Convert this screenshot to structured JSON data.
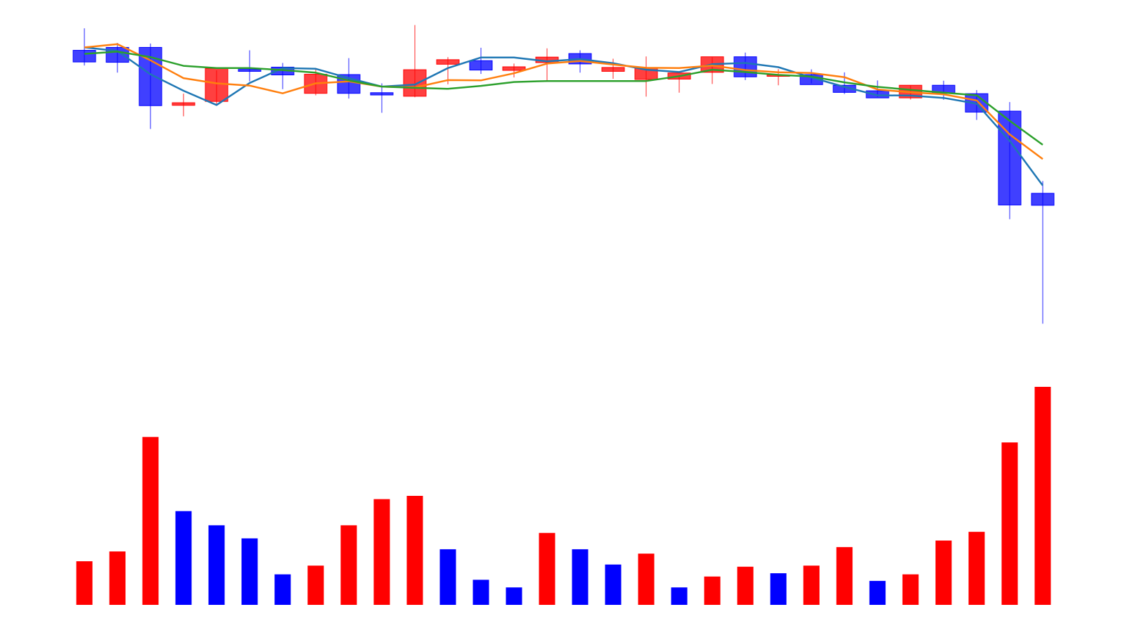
{
  "chart_data": [
    {
      "type": "candlestick",
      "title": "",
      "xlabel": "",
      "ylabel": "",
      "ylim": [
        0,
        100
      ],
      "grid": false,
      "legend": "none",
      "candles": [
        {
          "o": 90.1,
          "h": 96.9,
          "l": 85.4,
          "c": 86.5
        },
        {
          "o": 91.0,
          "h": 92.4,
          "l": 83.2,
          "c": 86.4
        },
        {
          "o": 91.0,
          "h": 92.2,
          "l": 65.8,
          "c": 73.0
        },
        {
          "o": 73.1,
          "h": 76.7,
          "l": 69.7,
          "c": 73.9
        },
        {
          "o": 74.3,
          "h": 83.9,
          "l": 73.5,
          "c": 84.5
        },
        {
          "o": 84.2,
          "h": 90.1,
          "l": 80.5,
          "c": 83.6
        },
        {
          "o": 84.9,
          "h": 86.2,
          "l": 78.1,
          "c": 82.5
        },
        {
          "o": 76.8,
          "h": 84.6,
          "l": 76.2,
          "c": 82.7
        },
        {
          "o": 82.6,
          "h": 87.7,
          "l": 75.2,
          "c": 76.8
        },
        {
          "o": 77.0,
          "h": 79.9,
          "l": 70.8,
          "c": 76.3
        },
        {
          "o": 75.9,
          "h": 97.9,
          "l": 75.6,
          "c": 84.1
        },
        {
          "o": 85.8,
          "h": 88.0,
          "l": 79.6,
          "c": 87.2
        },
        {
          "o": 86.9,
          "h": 90.9,
          "l": 82.8,
          "c": 84.0
        },
        {
          "o": 83.9,
          "h": 86.0,
          "l": 81.7,
          "c": 85.0
        },
        {
          "o": 86.3,
          "h": 90.7,
          "l": 80.6,
          "c": 88.0
        },
        {
          "o": 89.1,
          "h": 90.1,
          "l": 83.2,
          "c": 85.9
        },
        {
          "o": 83.6,
          "h": 87.5,
          "l": 81.3,
          "c": 84.8
        },
        {
          "o": 81.1,
          "h": 88.2,
          "l": 75.8,
          "c": 84.6
        },
        {
          "o": 81.2,
          "h": 82.5,
          "l": 77.0,
          "c": 83.1
        },
        {
          "o": 83.3,
          "h": 88.0,
          "l": 79.7,
          "c": 88.1
        },
        {
          "o": 88.1,
          "h": 89.4,
          "l": 80.9,
          "c": 81.9
        },
        {
          "o": 82.2,
          "h": 84.3,
          "l": 79.3,
          "c": 82.5
        },
        {
          "o": 82.6,
          "h": 84.2,
          "l": 79.9,
          "c": 79.5
        },
        {
          "o": 79.3,
          "h": 83.3,
          "l": 76.6,
          "c": 77.1
        },
        {
          "o": 77.6,
          "h": 80.8,
          "l": 75.7,
          "c": 75.4
        },
        {
          "o": 75.4,
          "h": 79.3,
          "l": 74.9,
          "c": 79.3
        },
        {
          "o": 79.3,
          "h": 80.7,
          "l": 74.8,
          "c": 76.8
        },
        {
          "o": 76.7,
          "h": 77.8,
          "l": 68.6,
          "c": 71.0
        },
        {
          "o": 71.3,
          "h": 74.1,
          "l": 37.9,
          "c": 42.3
        },
        {
          "o": 45.9,
          "h": 49.7,
          "l": 5.6,
          "c": 42.2
        }
      ],
      "moving_averages": [
        {
          "color": "#1f77b4",
          "values": [
            91.0,
            89.9,
            82.7,
            77.6,
            73.2,
            80.0,
            84.6,
            84.4,
            81.5,
            78.9,
            79.5,
            84.6,
            87.9,
            87.9,
            86.7,
            87.4,
            86.1,
            84.1,
            83.4,
            85.8,
            86.2,
            84.9,
            81.7,
            78.8,
            76.2,
            76.1,
            75.4,
            73.6,
            62.1,
            48.3
          ]
        },
        {
          "color": "#ff7f0e",
          "values": [
            91.0,
            92.0,
            87.0,
            81.5,
            79.9,
            79.2,
            76.8,
            79.9,
            80.5,
            78.9,
            78.6,
            80.9,
            80.8,
            83.0,
            86.0,
            86.8,
            85.7,
            84.7,
            84.6,
            85.4,
            84.0,
            83.3,
            83.1,
            81.8,
            78.0,
            77.1,
            76.5,
            74.6,
            64.1,
            56.5
          ]
        },
        {
          "color": "#2ca02c",
          "values": [
            89.0,
            89.7,
            88.0,
            85.3,
            84.6,
            84.6,
            84.0,
            83.2,
            80.8,
            78.9,
            78.5,
            78.2,
            79.1,
            80.3,
            80.6,
            80.6,
            80.6,
            80.6,
            82.1,
            84.1,
            83.4,
            82.5,
            82.0,
            80.2,
            78.8,
            77.9,
            77.0,
            76.2,
            68.3,
            60.9
          ]
        }
      ],
      "colors": {
        "up": "#ff0000",
        "down": "#0000ff",
        "up_body_opacity": 0.75,
        "down_body_opacity": 0.75
      }
    },
    {
      "type": "bar",
      "title": "",
      "xlabel": "",
      "ylabel": "",
      "ylim": [
        0,
        100
      ],
      "grid": false,
      "legend": "none",
      "values": [
        20,
        24.5,
        77,
        43,
        36.5,
        30.5,
        14,
        18,
        36.5,
        48.5,
        50,
        25.5,
        11.5,
        8,
        33,
        25.5,
        18.5,
        23.5,
        8,
        13,
        17.5,
        14.5,
        18,
        26.5,
        11,
        14,
        29.5,
        33.5,
        74.5,
        100
      ],
      "directions": [
        "up",
        "up",
        "up",
        "down",
        "down",
        "down",
        "down",
        "up",
        "up",
        "up",
        "up",
        "down",
        "down",
        "down",
        "up",
        "down",
        "down",
        "up",
        "down",
        "up",
        "up",
        "down",
        "up",
        "up",
        "down",
        "up",
        "up",
        "up",
        "up",
        "up"
      ]
    }
  ]
}
